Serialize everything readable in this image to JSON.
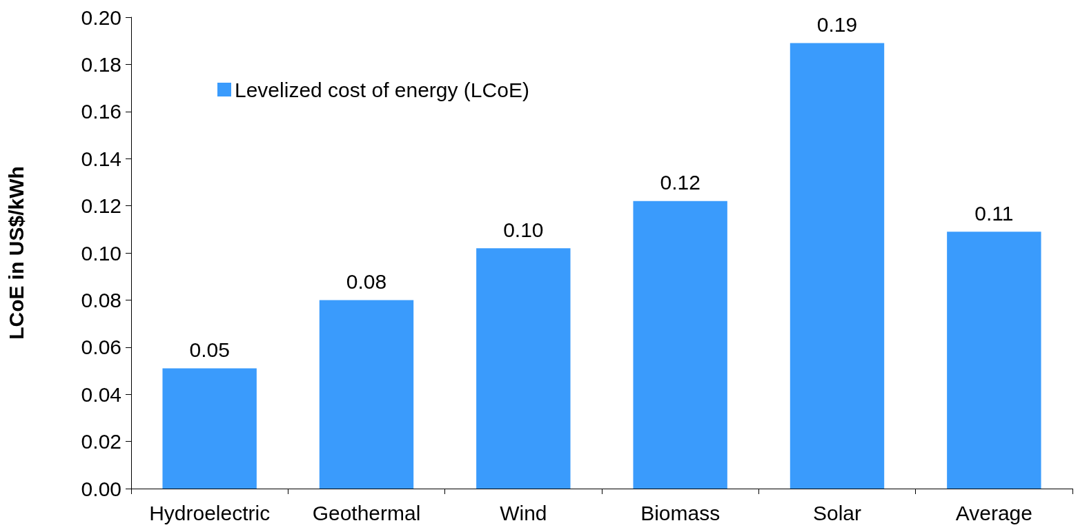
{
  "chart_data": {
    "type": "bar",
    "ylabel": "LCoE in US$/kWh",
    "categories": [
      "Hydroelectric",
      "Geothermal",
      "Wind",
      "Biomass",
      "Solar",
      "Average"
    ],
    "series": [
      {
        "name": "Levelized cost of energy (LCoE)",
        "color": "#3a9bfc",
        "values": [
          0.051,
          0.08,
          0.102,
          0.122,
          0.189,
          0.109
        ],
        "value_labels": [
          "0.05",
          "0.08",
          "0.10",
          "0.12",
          "0.19",
          "0.11"
        ]
      }
    ],
    "ylim": [
      0,
      0.2
    ],
    "yticks": [
      {
        "value": 0,
        "label": "0.00"
      },
      0.02,
      0.04,
      0.06,
      0.08,
      {
        "value": 0.1,
        "label": "0.10"
      },
      0.12,
      0.14,
      0.16,
      0.18,
      {
        "value": 0.2,
        "label": "0.20"
      }
    ],
    "grid": false,
    "legend": "top left"
  }
}
